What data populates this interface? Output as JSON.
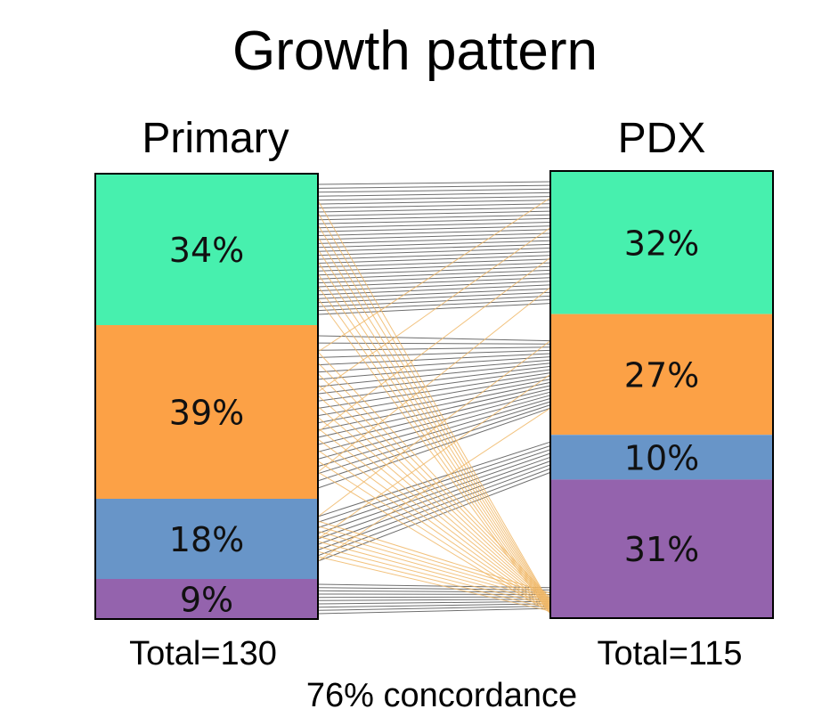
{
  "chart_data": {
    "type": "bar",
    "subtype": "stacked-bar-with-connectors",
    "title": "Growth pattern",
    "bars": [
      {
        "name": "Primary",
        "total_label": "Total=130",
        "segments": [
          {
            "label": "34%",
            "value": 34,
            "color": "#47f0ae"
          },
          {
            "label": "39%",
            "value": 39,
            "color": "#fca146"
          },
          {
            "label": "18%",
            "value": 18,
            "color": "#6895c8"
          },
          {
            "label": "9%",
            "value": 9,
            "color": "#9463ad"
          }
        ]
      },
      {
        "name": "PDX",
        "total_label": "Total=115",
        "segments": [
          {
            "label": "32%",
            "value": 32,
            "color": "#47f0ae"
          },
          {
            "label": "27%",
            "value": 27,
            "color": "#fca146"
          },
          {
            "label": "10%",
            "value": 10,
            "color": "#6895c8"
          },
          {
            "label": "31%",
            "value": 31,
            "color": "#9463ad"
          }
        ]
      }
    ],
    "footer": "76% concordance",
    "concordant_line_color": "#555555",
    "discordant_line_color": "#f0b868"
  }
}
